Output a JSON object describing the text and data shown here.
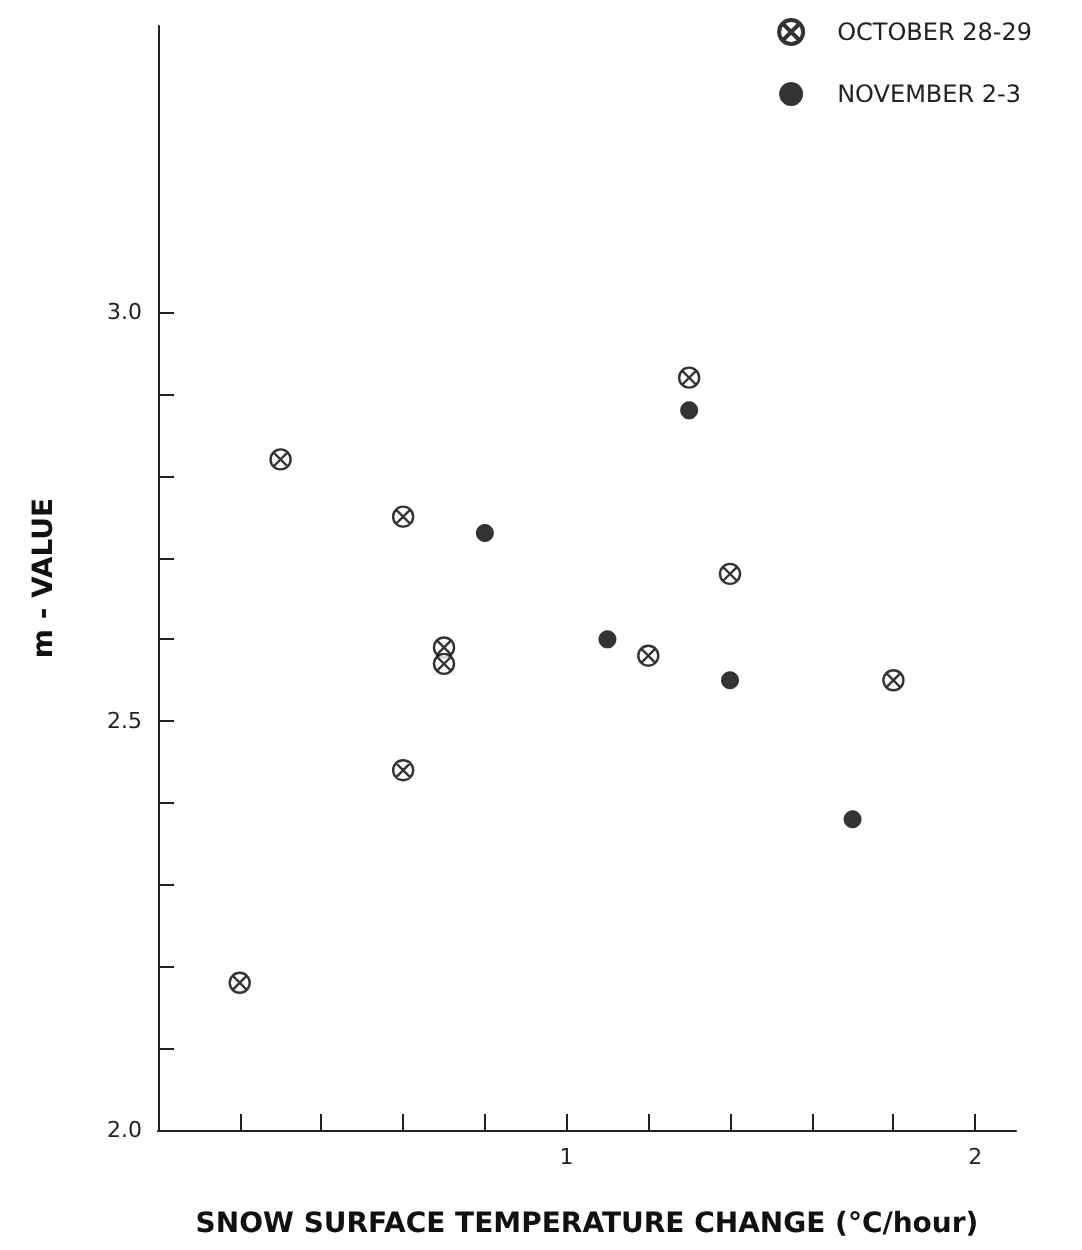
{
  "chart_data": {
    "type": "scatter",
    "xlabel": "SNOW SURFACE TEMPERATURE CHANGE (°C/hour)",
    "ylabel": "m - VALUE",
    "xlim": [
      0,
      2.1
    ],
    "ylim": [
      2.0,
      3.35
    ],
    "xticks": [
      {
        "value": 0.2,
        "label": null
      },
      {
        "value": 0.4,
        "label": null
      },
      {
        "value": 0.6,
        "label": null
      },
      {
        "value": 0.8,
        "label": null
      },
      1,
      {
        "value": 1.2,
        "label": null
      },
      {
        "value": 1.4,
        "label": null
      },
      {
        "value": 1.6,
        "label": null
      },
      {
        "value": 1.8,
        "label": null
      },
      2
    ],
    "yticks": [
      {
        "value": 2.0,
        "label": "2.0"
      },
      {
        "value": 2.1,
        "label": null
      },
      {
        "value": 2.2,
        "label": null
      },
      {
        "value": 2.3,
        "label": null
      },
      {
        "value": 2.4,
        "label": null
      },
      {
        "value": 2.5,
        "label": "2.5"
      },
      {
        "value": 2.6,
        "label": null
      },
      {
        "value": 2.7,
        "label": null
      },
      {
        "value": 2.8,
        "label": null
      },
      {
        "value": 2.9,
        "label": null
      },
      {
        "value": 3.0,
        "label": "3.0"
      }
    ],
    "grid": false,
    "legend": "top right",
    "series": [
      {
        "name": "OCTOBER 28-29",
        "color": "#000000",
        "marker": "cross",
        "x": [
          0.3,
          0.6,
          1.3,
          1.4,
          0.7,
          0.7,
          0.6,
          1.2,
          1.8,
          0.2
        ],
        "values": [
          2.82,
          2.75,
          2.92,
          2.68,
          2.59,
          2.57,
          2.44,
          2.58,
          2.55,
          2.18
        ]
      },
      {
        "name": "NOVEMBER 2-3",
        "color": "#000000",
        "marker": "circle",
        "x": [
          1.3,
          0.8,
          1.1,
          1.4,
          1.7
        ],
        "values": [
          2.88,
          2.73,
          2.6,
          2.55,
          2.38
        ]
      }
    ]
  }
}
